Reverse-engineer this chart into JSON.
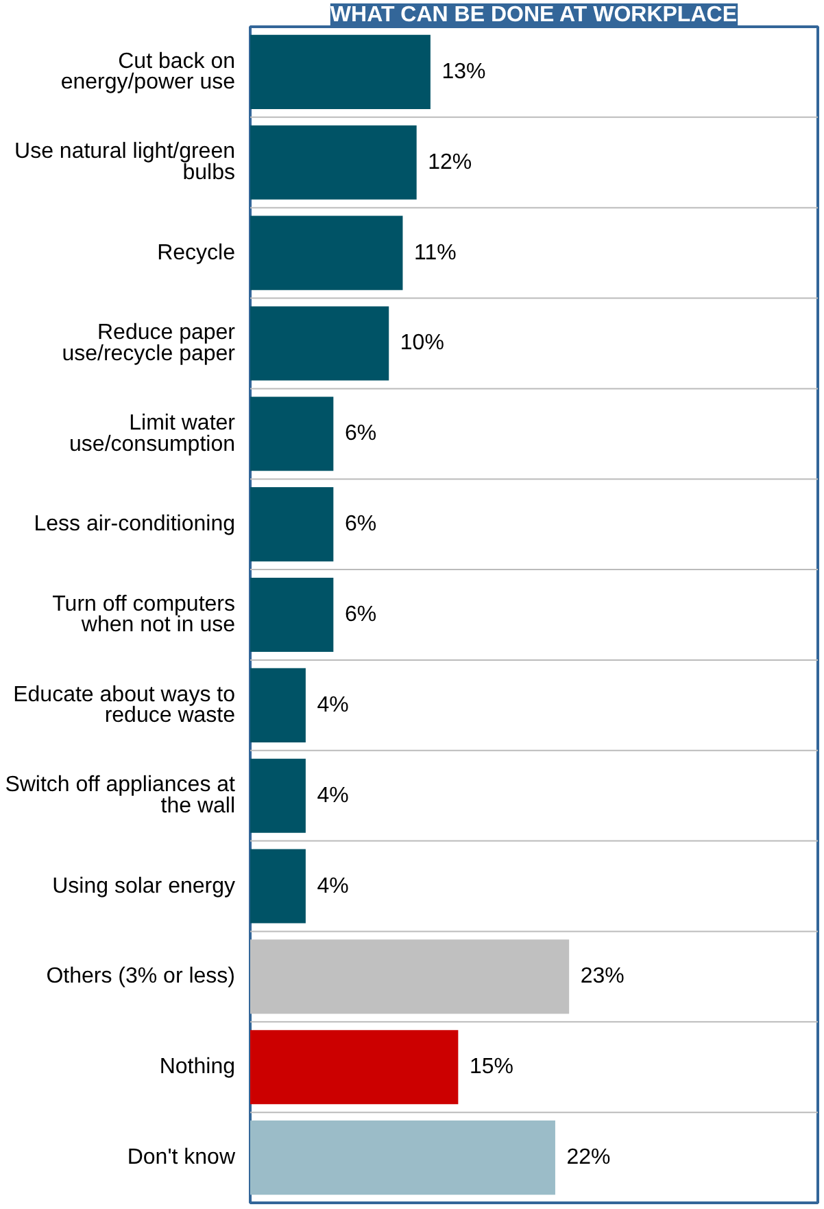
{
  "chart_data": {
    "type": "bar",
    "orientation": "horizontal",
    "title": "WHAT CAN BE DONE AT WORKPLACE",
    "categories": [
      "Cut back on\nenergy/power use",
      "Use natural light/green\nbulbs",
      "Recycle",
      "Reduce paper\nuse/recycle paper",
      "Limit water\nuse/consumption",
      "Less air-conditioning",
      "Turn off computers\nwhen not in use",
      "Educate about ways to\nreduce waste",
      "Switch off appliances at\nthe wall",
      "Using solar energy",
      "Others (3% or less)",
      "Nothing",
      "Don't know"
    ],
    "values": [
      13,
      12,
      11,
      10,
      6,
      6,
      6,
      4,
      4,
      4,
      23,
      15,
      22
    ],
    "colors": [
      "#005366",
      "#005366",
      "#005366",
      "#005366",
      "#005366",
      "#005366",
      "#005366",
      "#005366",
      "#005366",
      "#005366",
      "#c0c0c0",
      "#cc0000",
      "#9bbcc8"
    ],
    "value_labels": [
      "13%",
      "12%",
      "11%",
      "10%",
      "6%",
      "6%",
      "6%",
      "4%",
      "4%",
      "4%",
      "23%",
      "15%",
      "22%"
    ],
    "grid": "y"
  }
}
